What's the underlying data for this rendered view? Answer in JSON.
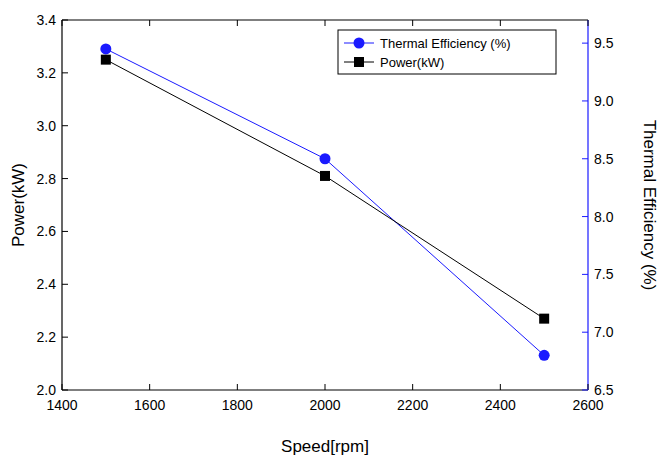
{
  "chart_data": {
    "type": "line",
    "x_label": "Speed[rpm]",
    "y_label": "Power(kW)",
    "y2_label": "Thermal Efficiency  (%)",
    "x": [
      1500,
      2000,
      2500
    ],
    "series": [
      {
        "name": "Thermal Efficiency (%)",
        "color": "#1a1aff",
        "marker": "circle",
        "axis": "y2",
        "values": [
          9.45,
          8.5,
          6.8
        ]
      },
      {
        "name": "Power(kW)",
        "color": "#000000",
        "marker": "square",
        "values": [
          3.25,
          2.81,
          2.27
        ]
      }
    ],
    "xlim": [
      1400,
      2600
    ],
    "xticks": [
      1400,
      1600,
      1800,
      2000,
      2200,
      2400,
      2600
    ],
    "ylim": [
      2.0,
      3.4
    ],
    "yticks": [
      {
        "value": 2.0,
        "label": "2.0"
      },
      2.2,
      2.4,
      2.6,
      2.8,
      {
        "value": 3.0,
        "label": "3.0"
      },
      3.2,
      3.4
    ],
    "y2lim": [
      6.5,
      9.7
    ],
    "y2ticks": [
      6.5,
      {
        "value": 7.0,
        "label": "7.0"
      },
      7.5,
      {
        "value": 8.0,
        "label": "8.0"
      },
      8.5,
      {
        "value": 9.0,
        "label": "9.0"
      },
      9.5
    ],
    "legend": "upper right",
    "grid": false
  }
}
